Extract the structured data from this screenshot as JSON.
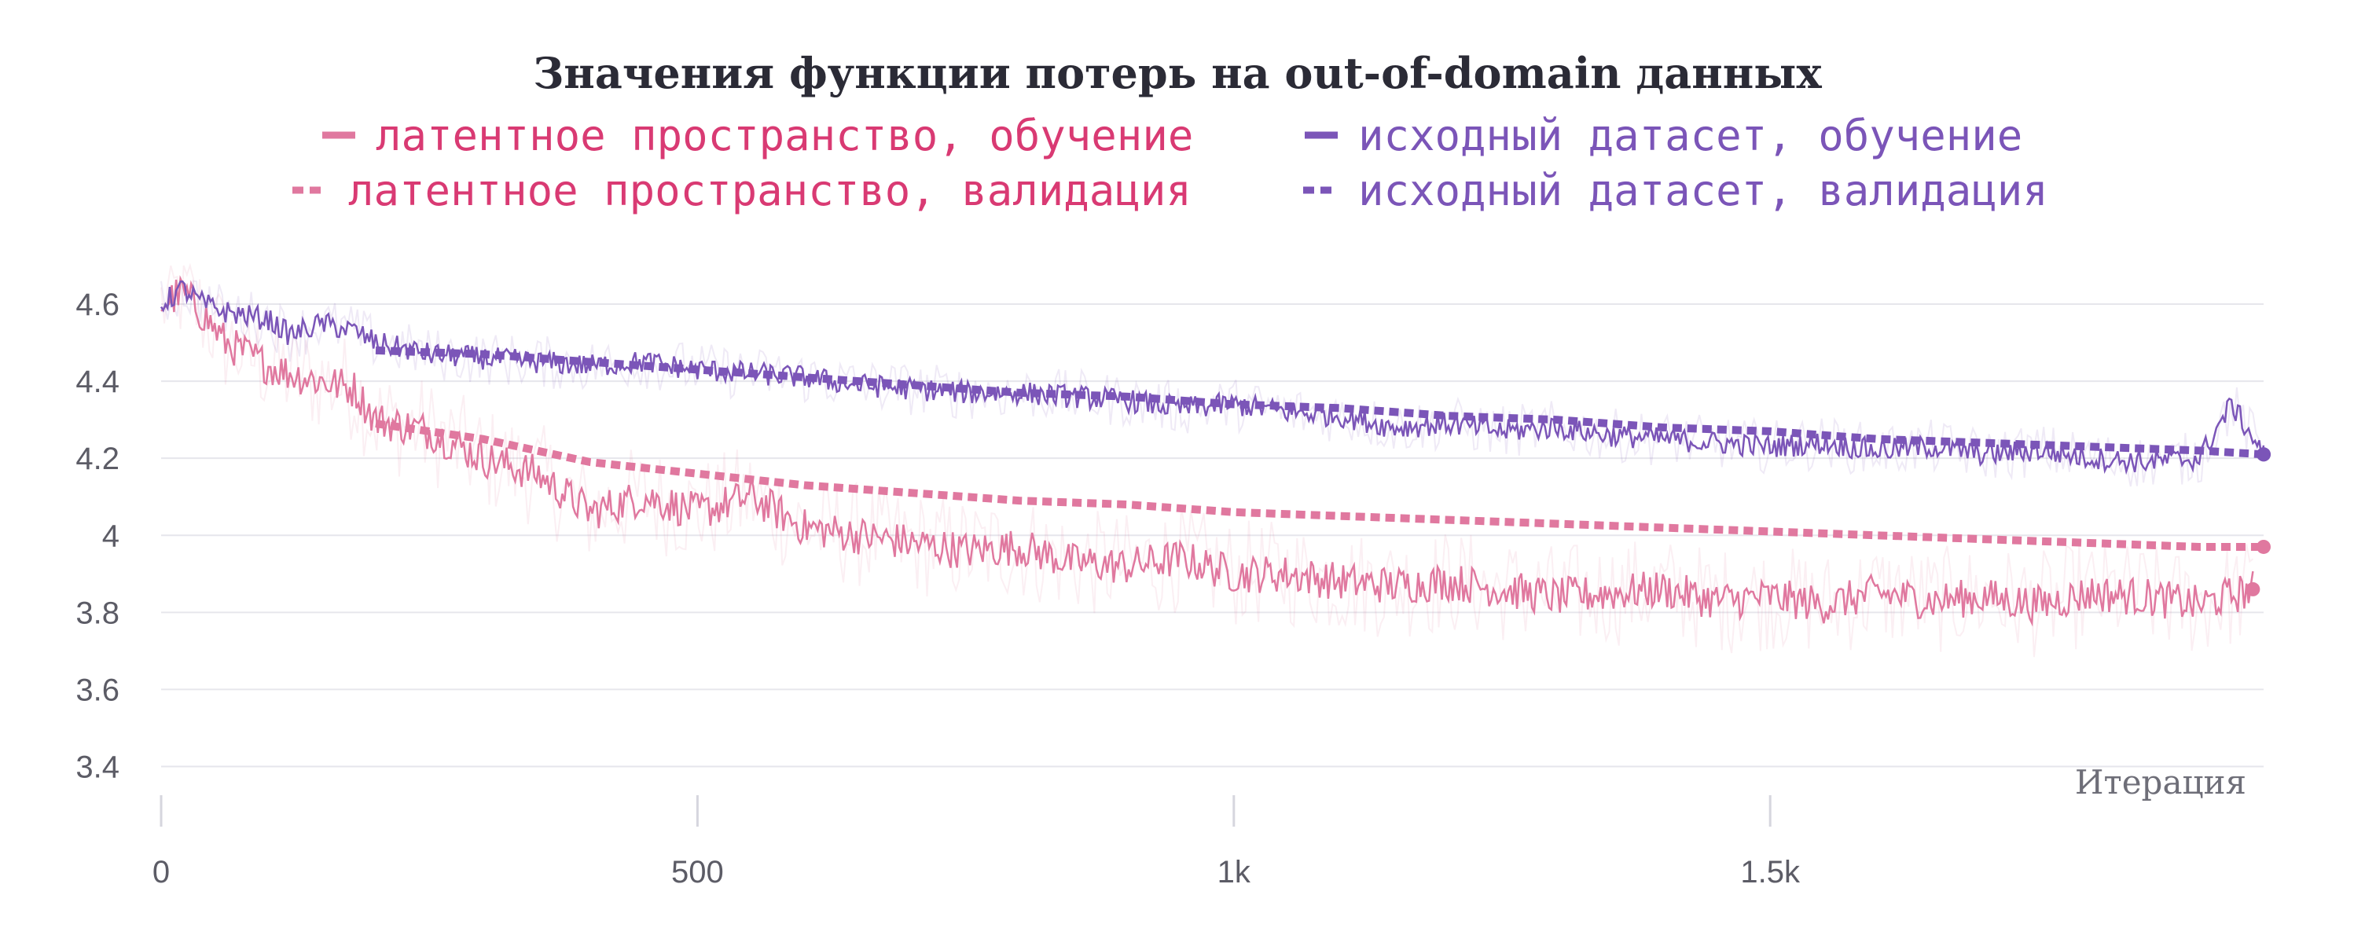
{
  "chart_data": {
    "type": "line",
    "title": "Значения функции потерь на out-of-domain данных",
    "xlabel": "Итерация",
    "ylabel": "",
    "xlim": [
      0,
      1960
    ],
    "ylim": [
      3.35,
      4.7
    ],
    "x_ticks": [
      0,
      500,
      1000,
      1500
    ],
    "x_tick_labels": [
      "0",
      "500",
      "1k",
      "1.5k"
    ],
    "y_ticks": [
      3.4,
      3.6,
      3.8,
      4.0,
      4.2,
      4.4,
      4.6
    ],
    "y_tick_labels": [
      "3.4",
      "3.6",
      "3.8",
      "4",
      "4.2",
      "4.4",
      "4.6"
    ],
    "grid": true,
    "legend_position": "top-center",
    "series": [
      {
        "name": "латентное пространство, обучение",
        "color": "#e0789f",
        "style": "solid",
        "x": [
          0,
          20,
          40,
          60,
          80,
          100,
          120,
          150,
          180,
          200,
          250,
          300,
          350,
          400,
          450,
          500,
          550,
          600,
          650,
          700,
          750,
          800,
          850,
          900,
          950,
          1000,
          1050,
          1100,
          1150,
          1200,
          1250,
          1300,
          1350,
          1400,
          1450,
          1500,
          1550,
          1600,
          1650,
          1700,
          1750,
          1800,
          1850,
          1900,
          1950
        ],
        "y": [
          4.6,
          4.63,
          4.57,
          4.5,
          4.47,
          4.44,
          4.42,
          4.4,
          4.38,
          4.3,
          4.27,
          4.2,
          4.16,
          4.06,
          4.1,
          4.06,
          4.1,
          4.02,
          4.0,
          3.98,
          3.96,
          3.97,
          3.93,
          3.92,
          3.94,
          3.9,
          3.9,
          3.88,
          3.87,
          3.88,
          3.86,
          3.84,
          3.85,
          3.86,
          3.83,
          3.84,
          3.82,
          3.85,
          3.83,
          3.84,
          3.82,
          3.85,
          3.84,
          3.82,
          3.86
        ]
      },
      {
        "name": "латентное пространство, валидация",
        "color": "#e0789f",
        "style": "dashed",
        "x": [
          200,
          250,
          300,
          350,
          400,
          500,
          600,
          700,
          800,
          900,
          1000,
          1100,
          1200,
          1300,
          1400,
          1500,
          1600,
          1700,
          1800,
          1900,
          1960
        ],
        "y": [
          4.29,
          4.27,
          4.25,
          4.22,
          4.19,
          4.16,
          4.13,
          4.11,
          4.09,
          4.08,
          4.06,
          4.05,
          4.04,
          4.03,
          4.02,
          4.01,
          4.0,
          3.99,
          3.98,
          3.97,
          3.97
        ]
      },
      {
        "name": "исходный датасет, обучение",
        "color": "#7b55b8",
        "style": "solid",
        "x": [
          0,
          20,
          40,
          60,
          80,
          100,
          120,
          150,
          180,
          200,
          250,
          300,
          350,
          400,
          450,
          500,
          550,
          600,
          650,
          700,
          750,
          800,
          850,
          900,
          950,
          1000,
          1050,
          1100,
          1150,
          1200,
          1250,
          1300,
          1350,
          1400,
          1450,
          1500,
          1550,
          1600,
          1650,
          1700,
          1750,
          1800,
          1850,
          1900,
          1930,
          1960
        ],
        "y": [
          4.6,
          4.64,
          4.6,
          4.58,
          4.57,
          4.56,
          4.52,
          4.55,
          4.53,
          4.5,
          4.47,
          4.46,
          4.45,
          4.44,
          4.45,
          4.43,
          4.42,
          4.41,
          4.39,
          4.38,
          4.37,
          4.37,
          4.36,
          4.35,
          4.33,
          4.34,
          4.32,
          4.31,
          4.28,
          4.29,
          4.27,
          4.28,
          4.26,
          4.25,
          4.24,
          4.23,
          4.24,
          4.22,
          4.23,
          4.21,
          4.22,
          4.2,
          4.19,
          4.2,
          4.34,
          4.21
        ]
      },
      {
        "name": "исходный датасет, валидация",
        "color": "#7b55b8",
        "style": "dashed",
        "x": [
          200,
          300,
          400,
          500,
          600,
          700,
          800,
          900,
          1000,
          1100,
          1200,
          1300,
          1400,
          1500,
          1600,
          1700,
          1800,
          1900,
          1960
        ],
        "y": [
          4.48,
          4.47,
          4.45,
          4.43,
          4.41,
          4.39,
          4.37,
          4.36,
          4.34,
          4.33,
          4.31,
          4.3,
          4.28,
          4.27,
          4.25,
          4.24,
          4.23,
          4.22,
          4.21
        ]
      }
    ]
  }
}
